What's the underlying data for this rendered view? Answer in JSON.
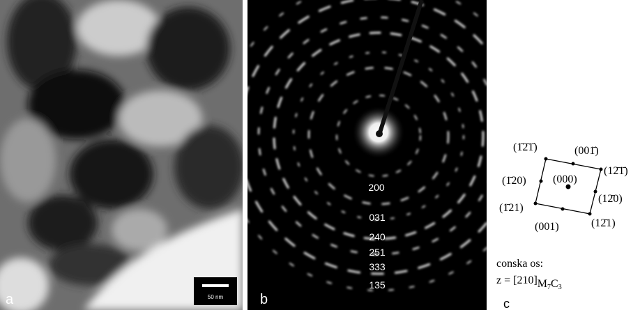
{
  "panels": {
    "a": {
      "label": "a",
      "scale_bar": "50 nm"
    },
    "b": {
      "label": "b",
      "ring_labels": [
        "200",
        "031",
        "240",
        "251",
        "333",
        "135"
      ]
    },
    "c": {
      "label": "c",
      "points": [
        "(1̄2̄1̄)",
        "(001̄)",
        "(12̄1̄)",
        "(1̄20)",
        "(12̄0)",
        "(1̄21)",
        "(001)",
        "(12̄1)"
      ],
      "center": "(000)",
      "caption": "conska os:",
      "zone_axis": "z = [210]",
      "phase": [
        "M",
        "7",
        "C",
        "3"
      ]
    }
  }
}
